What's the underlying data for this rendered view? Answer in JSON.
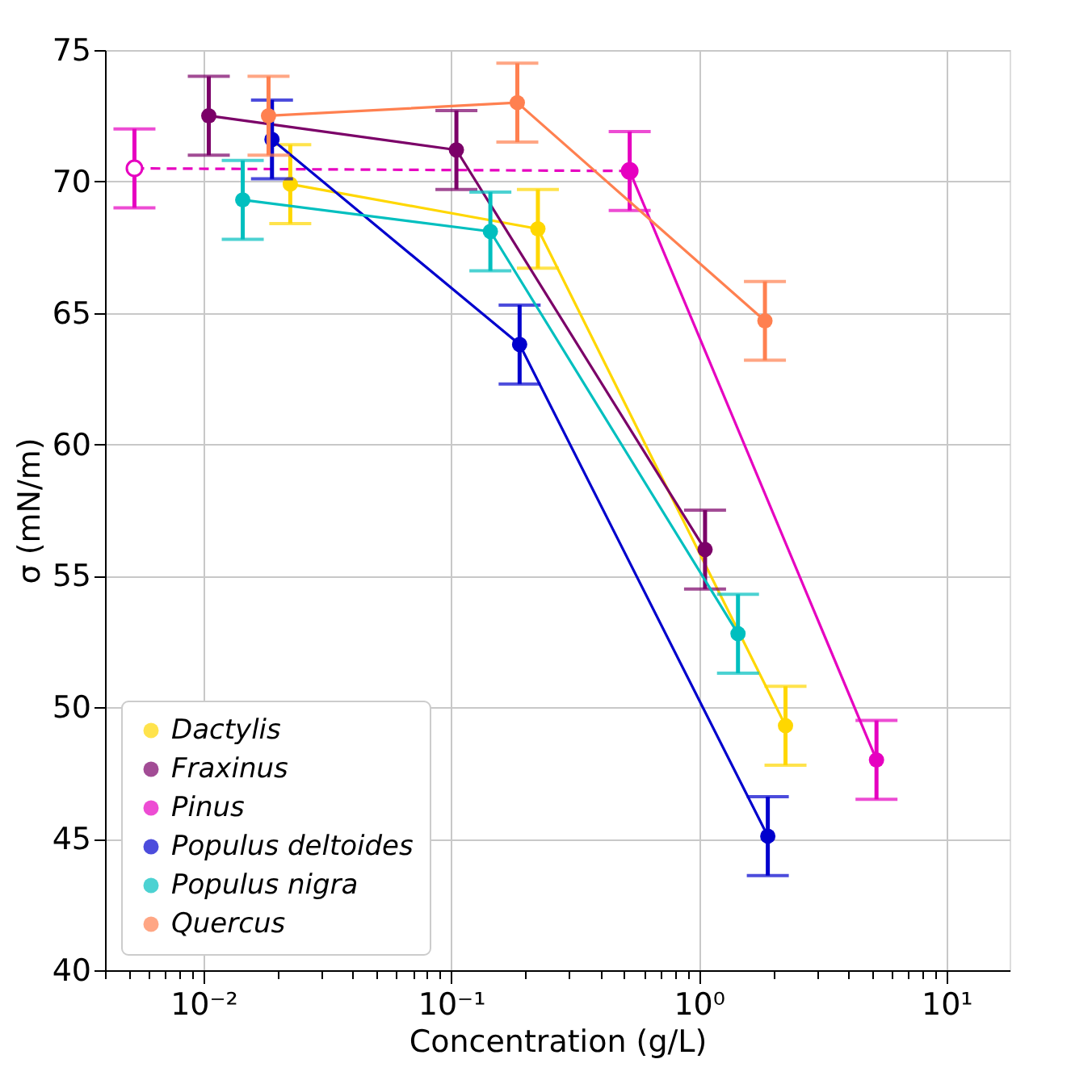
{
  "chart_data": {
    "type": "line",
    "xlabel": "Concentration (g/L)",
    "ylabel": "σ (mN/m)",
    "log": "x",
    "grid": true,
    "legend": "bottom left",
    "marker": "circle",
    "line_style": "solid",
    "xlim": [
      0.004,
      18
    ],
    "ylim": [
      40,
      75
    ],
    "yticks": [
      40,
      45,
      50,
      55,
      60,
      65,
      70,
      75
    ],
    "xticks": [
      {
        "value": 0.004,
        "label": null
      },
      {
        "value": 0.005,
        "label": null
      },
      {
        "value": 0.006,
        "label": null
      },
      {
        "value": 0.007,
        "label": null
      },
      {
        "value": 0.008,
        "label": null
      },
      {
        "value": 0.009,
        "label": null
      },
      {
        "value": 0.01,
        "label": "10⁻²"
      },
      {
        "value": 0.02,
        "label": null
      },
      {
        "value": 0.03,
        "label": null
      },
      {
        "value": 0.04,
        "label": null
      },
      {
        "value": 0.05,
        "label": null
      },
      {
        "value": 0.06,
        "label": null
      },
      {
        "value": 0.07,
        "label": null
      },
      {
        "value": 0.08,
        "label": null
      },
      {
        "value": 0.09,
        "label": null
      },
      {
        "value": 0.1,
        "label": "10⁻¹"
      },
      {
        "value": 0.2,
        "label": null
      },
      {
        "value": 0.3,
        "label": null
      },
      {
        "value": 0.4,
        "label": null
      },
      {
        "value": 0.5,
        "label": null
      },
      {
        "value": 0.6,
        "label": null
      },
      {
        "value": 0.7,
        "label": null
      },
      {
        "value": 0.8,
        "label": null
      },
      {
        "value": 0.9,
        "label": null
      },
      {
        "value": 1,
        "label": "10⁰"
      },
      {
        "value": 2,
        "label": null
      },
      {
        "value": 3,
        "label": null
      },
      {
        "value": 4,
        "label": null
      },
      {
        "value": 5,
        "label": null
      },
      {
        "value": 6,
        "label": null
      },
      {
        "value": 7,
        "label": null
      },
      {
        "value": 8,
        "label": null
      },
      {
        "value": 9,
        "label": null
      },
      {
        "value": 10,
        "label": "10¹"
      }
    ],
    "series": [
      {
        "color": "#e600c0",
        "line_style": "dashed",
        "x": [
          0.00526,
          0.526
        ],
        "values": [
          70.5,
          70.4
        ],
        "errors": [
          1.5,
          null
        ]
      },
      {
        "name": "Dactylis",
        "color": "#ffd700",
        "x": [
          0.0224,
          0.224,
          2.24
        ],
        "values": [
          69.9,
          68.2,
          49.3
        ],
        "errors": [
          1.5,
          1.5,
          1.5
        ]
      },
      {
        "name": "Fraxinus",
        "color": "#7b0068",
        "x": [
          0.0105,
          0.105,
          1.06
        ],
        "values": [
          72.5,
          71.2,
          56.0
        ],
        "errors": [
          1.5,
          1.5,
          1.5
        ]
      },
      {
        "name": "Pinus",
        "color": "#e600c0",
        "x": [
          0.526,
          5.22
        ],
        "values": [
          70.4,
          48.0
        ],
        "errors": [
          1.5,
          1.5
        ]
      },
      {
        "name": "Populus deltoides",
        "color": "#0000cd",
        "x": [
          0.0189,
          0.189,
          1.9
        ],
        "values": [
          71.6,
          63.8,
          45.1
        ],
        "errors": [
          1.5,
          1.5,
          1.5
        ]
      },
      {
        "name": "Populus nigra",
        "color": "#00bfbf",
        "x": [
          0.0144,
          0.144,
          1.44
        ],
        "values": [
          69.3,
          68.1,
          52.8
        ],
        "errors": [
          1.5,
          1.5,
          1.5
        ]
      },
      {
        "name": "Quercus",
        "color": "#ff8050",
        "x": [
          0.0183,
          0.185,
          1.85
        ],
        "values": [
          72.5,
          73.0,
          64.7
        ],
        "errors": [
          1.5,
          1.5,
          1.5
        ]
      }
    ]
  }
}
